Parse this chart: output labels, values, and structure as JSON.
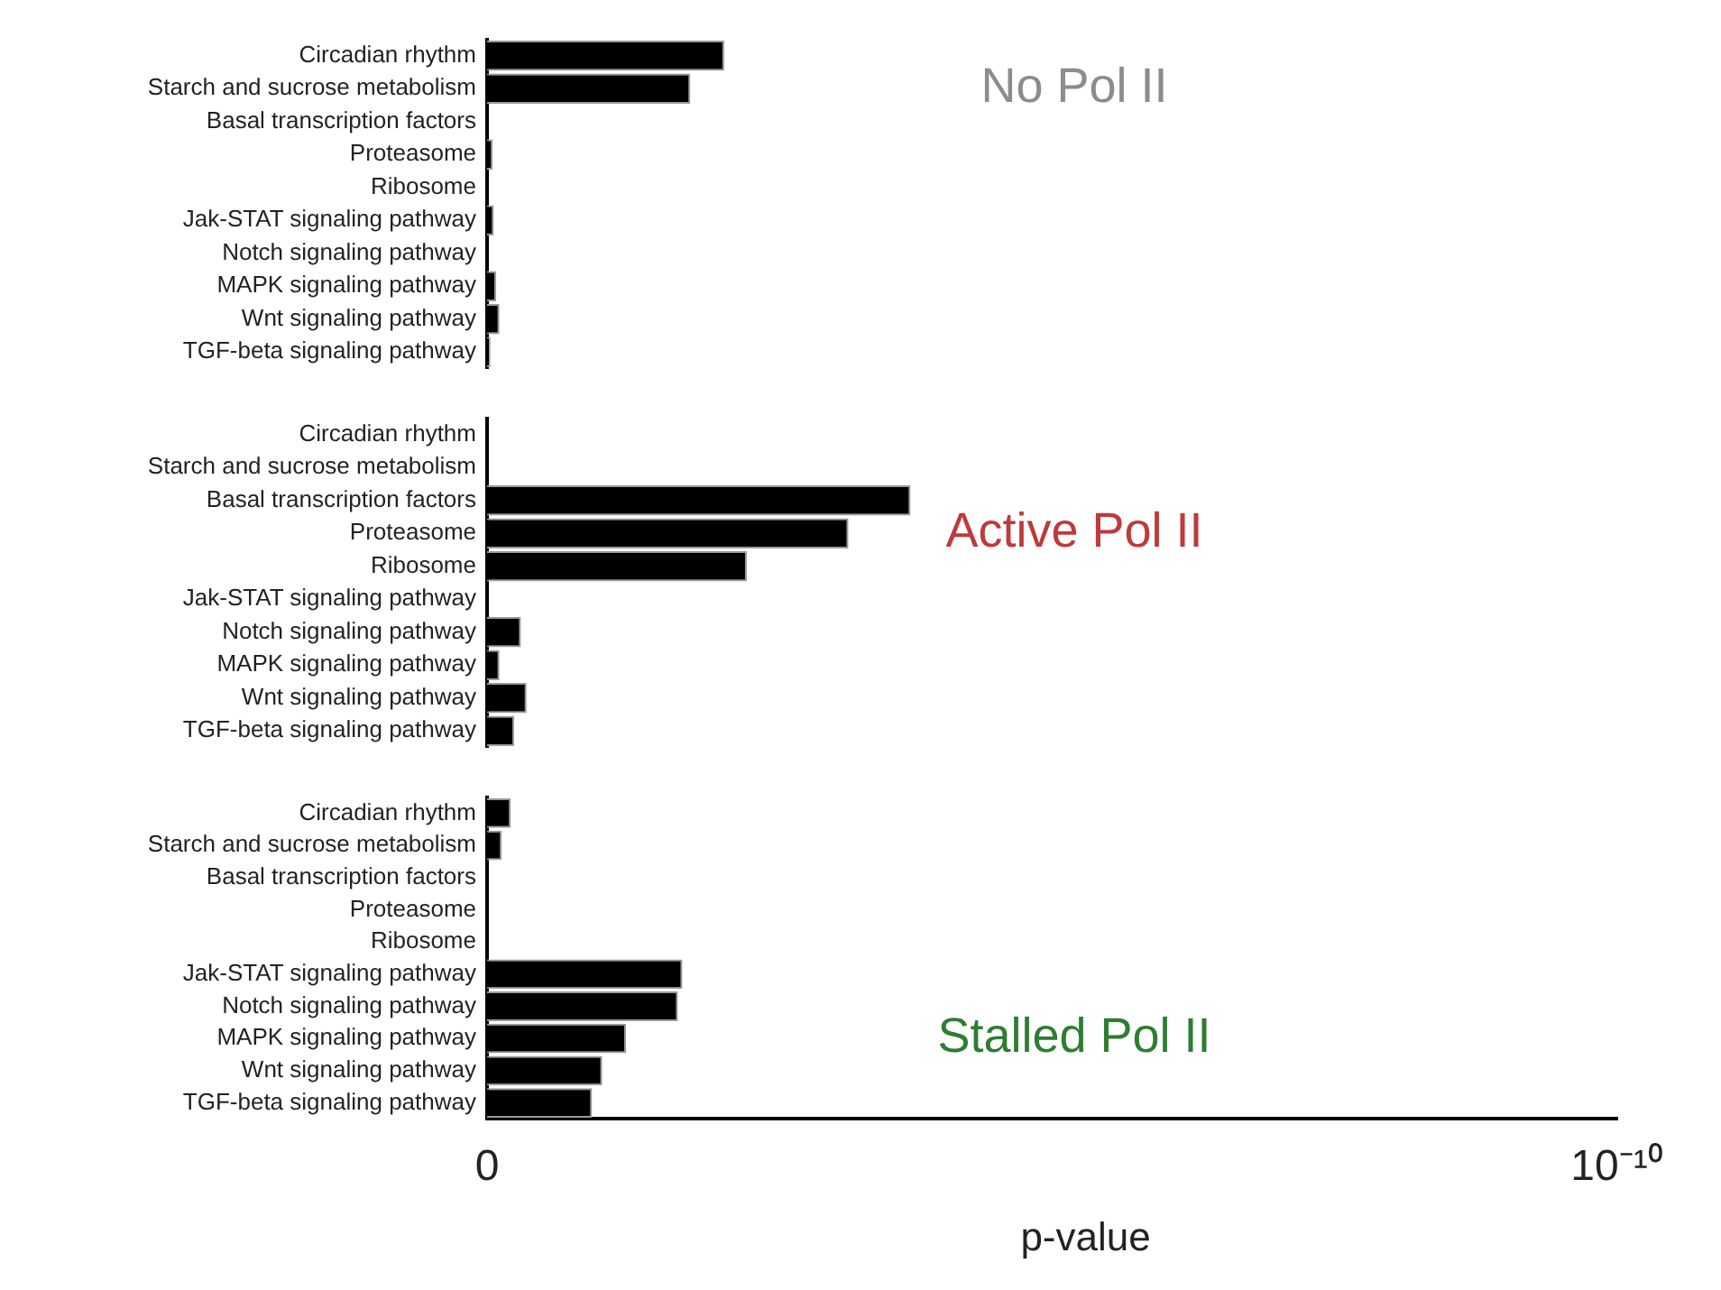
{
  "chart_data": [
    {
      "type": "bar",
      "orientation": "horizontal",
      "title": "No Pol II",
      "categories": [
        "Circadian rhythm",
        "Starch and sucrose metabolism",
        "Basal transcription factors",
        "Proteasome",
        "Ribosome",
        "Jak-STAT signaling pathway",
        "Notch signaling pathway",
        "MAPK signaling pathway",
        "Wnt signaling pathway",
        "TGF-beta signaling pathway"
      ],
      "values": [
        2.1e-11,
        1.8e-11,
        0,
        5e-13,
        0,
        6e-13,
        0,
        8e-13,
        1.1e-12,
        3e-13
      ],
      "color": "#000000",
      "xlim": [
        0,
        1e-10
      ],
      "tick_labels": "y"
    },
    {
      "type": "bar",
      "orientation": "horizontal",
      "title": "Active Pol II",
      "categories": [
        "Circadian rhythm",
        "Starch and sucrose metabolism",
        "Basal transcription factors",
        "Proteasome",
        "Ribosome",
        "Jak-STAT signaling pathway",
        "Notch signaling pathway",
        "MAPK signaling pathway",
        "Wnt signaling pathway",
        "TGF-beta signaling pathway"
      ],
      "values": [
        0,
        0,
        3.75e-11,
        3.2e-11,
        2.3e-11,
        0,
        3e-12,
        1.1e-12,
        3.5e-12,
        2.4e-12
      ],
      "color": "#000000",
      "xlim": [
        0,
        1e-10
      ],
      "tick_labels": "y"
    },
    {
      "type": "bar",
      "orientation": "horizontal",
      "title": "Stalled Pol II",
      "categories": [
        "Circadian rhythm",
        "Starch and sucrose metabolism",
        "Basal transcription factors",
        "Proteasome",
        "Ribosome",
        "Jak-STAT signaling pathway",
        "Notch signaling pathway",
        "MAPK signaling pathway",
        "Wnt signaling pathway",
        "TGF-beta signaling pathway"
      ],
      "values": [
        2.1e-12,
        1.3e-12,
        0,
        0,
        0,
        1.73e-11,
        1.69e-11,
        1.23e-11,
        1.02e-11,
        9.3e-12
      ],
      "color": "#000000",
      "xlim": [
        0,
        1e-10
      ],
      "xticks": [
        0,
        {
          "value": 1e-10,
          "label": "10⁻¹⁰"
        }
      ],
      "xlabel": "p-value"
    }
  ]
}
